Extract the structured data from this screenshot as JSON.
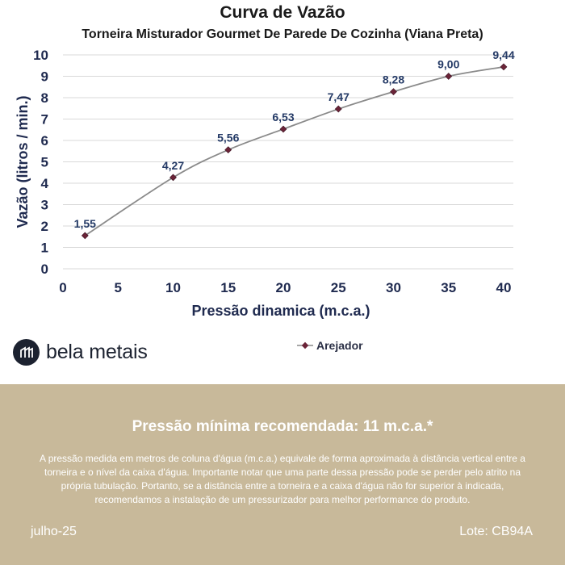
{
  "chart_data": {
    "type": "line",
    "title": "Curva de Vazão",
    "subtitle": "Torneira Misturador Gourmet De Parede De Cozinha (Viana Preta)",
    "xlabel": "Pressão dinamica (m.c.a.)",
    "ylabel": "Vazão (litros / min.)",
    "xlim": [
      0,
      40
    ],
    "ylim": [
      0,
      10
    ],
    "x_ticks": [
      "0",
      "5",
      "10",
      "15",
      "20",
      "25",
      "30",
      "35",
      "40"
    ],
    "y_ticks": [
      "0",
      "1",
      "2",
      "3",
      "4",
      "5",
      "6",
      "7",
      "8",
      "9",
      "10"
    ],
    "grid": true,
    "legend_position": "bottom",
    "series": [
      {
        "name": "Arejador",
        "x": [
          2,
          10,
          15,
          20,
          25,
          30,
          35,
          40
        ],
        "y": [
          1.55,
          4.27,
          5.56,
          6.53,
          7.47,
          8.28,
          9.0,
          9.44
        ],
        "labels": [
          "1,55",
          "4,27",
          "5,56",
          "6,53",
          "7,47",
          "8,28",
          "9,00",
          "9,44"
        ]
      }
    ],
    "colors": {
      "line": "#8a8a8a",
      "marker": "#6b2438",
      "axis_text": "#1f2a4f",
      "label_text": "#243a66"
    }
  },
  "brand": {
    "name": "bela metais",
    "logo_icon": "bm-logo-icon"
  },
  "info": {
    "heading": "Pressão mínima recomendada: 11 m.c.a.*",
    "body": "A pressão medida em metros de coluna d'água (m.c.a.) equivale de forma aproximada à distância vertical entre a torneira e o nível da caixa d'água. Importante notar que uma parte dessa pressão pode se perder pelo atrito na própria tubulação. Portanto, se a distância entre a torneira e a caixa d'água não for superior à indicada, recomendamos a instalação de um pressurizador para melhor performance do produto.",
    "date": "julho-25",
    "lot": "Lote: CB94A"
  }
}
